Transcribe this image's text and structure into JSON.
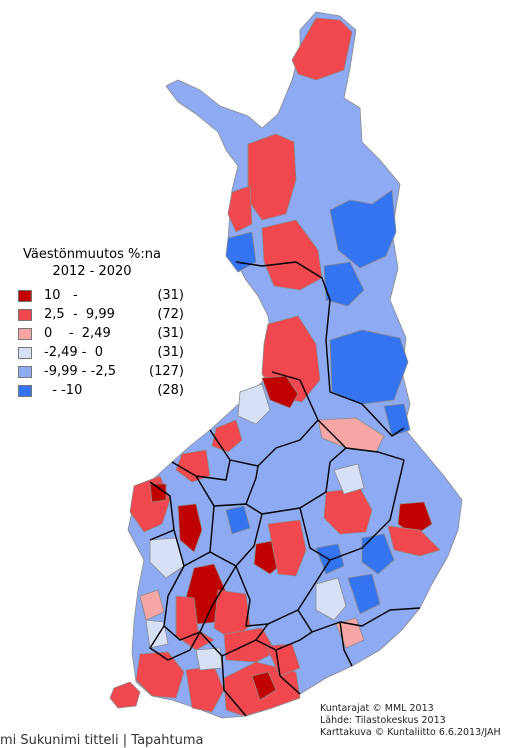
{
  "legend": {
    "title_line1": "Väestönmuutos %:na",
    "title_line2": "2012 - 2020",
    "classes": [
      {
        "from": "10",
        "sep": "-",
        "to": "",
        "count": "(31)",
        "color": "#c00000"
      },
      {
        "from": "2,5",
        "sep": "-",
        "to": "9,99",
        "count": "(72)",
        "color": "#f0484e"
      },
      {
        "from": "0",
        "sep": "-",
        "to": "2,49",
        "count": "(31)",
        "color": "#f6a6a4"
      },
      {
        "from": "-2,49",
        "sep": "-",
        "to": "0",
        "count": "(31)",
        "color": "#d6e1f6"
      },
      {
        "from": "-9,99",
        "sep": "-",
        "to": "-2,5",
        "count": "(127)",
        "color": "#8eaaf2"
      },
      {
        "from": "",
        "sep": "-",
        "to": "-10",
        "count": "(28)",
        "color": "#3574f0"
      }
    ]
  },
  "credits": {
    "line1": "Kuntarajat © MML 2013",
    "line2": "Lähde: Tilastokeskus 2013",
    "line3": "Karttakuva © Kuntaliitto 6.6.2013/JAH"
  },
  "footer_text": "mi Sukunimi titteli | Tapahtuma"
}
